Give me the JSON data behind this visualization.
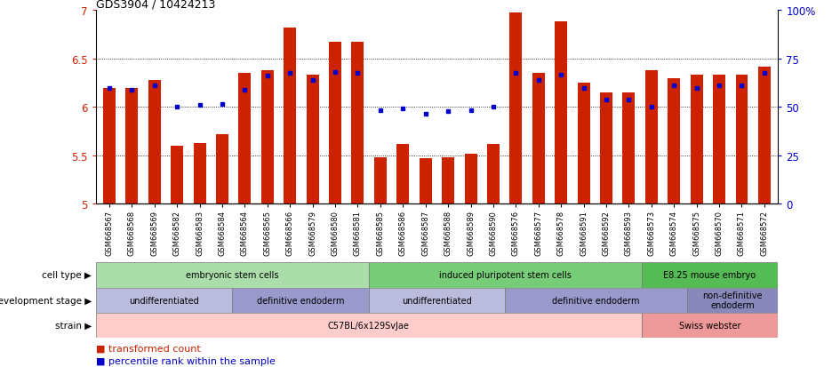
{
  "title": "GDS3904 / 10424213",
  "samples": [
    "GSM668567",
    "GSM668568",
    "GSM668569",
    "GSM668582",
    "GSM668583",
    "GSM668584",
    "GSM668564",
    "GSM668565",
    "GSM668566",
    "GSM668579",
    "GSM668580",
    "GSM668581",
    "GSM668585",
    "GSM668586",
    "GSM668587",
    "GSM668588",
    "GSM668589",
    "GSM668590",
    "GSM668576",
    "GSM668577",
    "GSM668578",
    "GSM668591",
    "GSM668592",
    "GSM668593",
    "GSM668573",
    "GSM668574",
    "GSM668575",
    "GSM668570",
    "GSM668571",
    "GSM668572"
  ],
  "red_values": [
    6.2,
    6.2,
    6.28,
    5.6,
    5.63,
    5.72,
    6.35,
    6.38,
    6.82,
    6.33,
    6.67,
    6.67,
    5.48,
    5.62,
    5.47,
    5.48,
    5.52,
    5.62,
    6.98,
    6.35,
    6.88,
    6.25,
    6.15,
    6.15,
    6.38,
    6.3,
    6.33,
    6.33,
    6.33,
    6.42
  ],
  "blue_values": [
    6.2,
    6.18,
    6.22,
    6.0,
    6.02,
    6.03,
    6.18,
    6.32,
    6.35,
    6.28,
    6.36,
    6.35,
    5.97,
    5.98,
    5.93,
    5.96,
    5.97,
    6.0,
    6.35,
    6.28,
    6.33,
    6.2,
    6.08,
    6.08,
    6.0,
    6.22,
    6.2,
    6.22,
    6.22,
    6.35
  ],
  "ylim": [
    5.0,
    7.0
  ],
  "yticks": [
    5.0,
    5.5,
    6.0,
    6.5,
    7.0
  ],
  "right_yticks": [
    0,
    25,
    50,
    75,
    100
  ],
  "bar_color": "#cc2200",
  "dot_color": "#0000cc",
  "cell_type_groups": [
    {
      "label": "embryonic stem cells",
      "start": 0,
      "end": 11,
      "color": "#aaddaa"
    },
    {
      "label": "induced pluripotent stem cells",
      "start": 12,
      "end": 23,
      "color": "#77cc77"
    },
    {
      "label": "E8.25 mouse embryo",
      "start": 24,
      "end": 29,
      "color": "#55bb55"
    }
  ],
  "dev_stage_groups": [
    {
      "label": "undifferentiated",
      "start": 0,
      "end": 5,
      "color": "#bbbbdd"
    },
    {
      "label": "definitive endoderm",
      "start": 6,
      "end": 11,
      "color": "#9999cc"
    },
    {
      "label": "undifferentiated",
      "start": 12,
      "end": 17,
      "color": "#bbbbdd"
    },
    {
      "label": "definitive endoderm",
      "start": 18,
      "end": 25,
      "color": "#9999cc"
    },
    {
      "label": "non-definitive\nendoderm",
      "start": 26,
      "end": 29,
      "color": "#8888bb"
    }
  ],
  "strain_groups": [
    {
      "label": "C57BL/6x129SvJae",
      "start": 0,
      "end": 23,
      "color": "#ffcccc"
    },
    {
      "label": "Swiss webster",
      "start": 24,
      "end": 29,
      "color": "#ee9999"
    }
  ],
  "legend_items": [
    {
      "label": "transformed count",
      "color": "#cc2200"
    },
    {
      "label": "percentile rank within the sample",
      "color": "#0000cc"
    }
  ]
}
